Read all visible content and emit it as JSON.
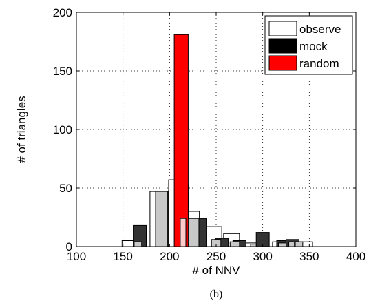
{
  "chart_data": {
    "type": "bar",
    "xlabel": "# of NNV",
    "ylabel": "# of triangles",
    "xlim": [
      100,
      400
    ],
    "ylim": [
      0,
      200
    ],
    "xticks": [
      100,
      150,
      200,
      250,
      300,
      350,
      400
    ],
    "yticks": [
      0,
      50,
      100,
      150,
      200
    ],
    "grid": true,
    "legend_position": "top-right",
    "caption": "(b)",
    "series": [
      {
        "name": "observe",
        "color": "#ffffff",
        "x": [
          157.5,
          187.5,
          207.5,
          225,
          247.5,
          266.5,
          287.5,
          317.5,
          345
        ],
        "width": [
          17,
          17,
          17,
          14,
          17,
          17,
          14,
          14,
          17
        ],
        "values": [
          5,
          47,
          57,
          30,
          17,
          11,
          3,
          4,
          4
        ]
      },
      {
        "name": "mock",
        "color": "#333333",
        "x": [
          168,
          192,
          213,
          233,
          256,
          275,
          300,
          322,
          332
        ],
        "width": [
          14,
          14,
          14,
          14,
          14,
          14,
          14,
          14,
          14
        ],
        "values": [
          18,
          47,
          53,
          24,
          7,
          5,
          12,
          5,
          6
        ]
      },
      {
        "name": "random",
        "color": "#ff0000",
        "x": [
          212.5
        ],
        "width": [
          15
        ],
        "values": [
          181
        ]
      }
    ],
    "overlap_bars": {
      "color": "#c8c8c8",
      "x": [
        166,
        191.5,
        212,
        225.5,
        250,
        270,
        290,
        321,
        331,
        339
      ],
      "width": [
        8,
        13,
        10,
        12,
        10,
        10,
        6,
        8,
        6,
        8
      ],
      "values": [
        4,
        47,
        53,
        24,
        6,
        4,
        2,
        3,
        4,
        4
      ]
    },
    "overlap_random": {
      "color": "#ffcccc",
      "x": [
        214.5
      ],
      "width": [
        6
      ],
      "values": [
        24
      ]
    }
  }
}
